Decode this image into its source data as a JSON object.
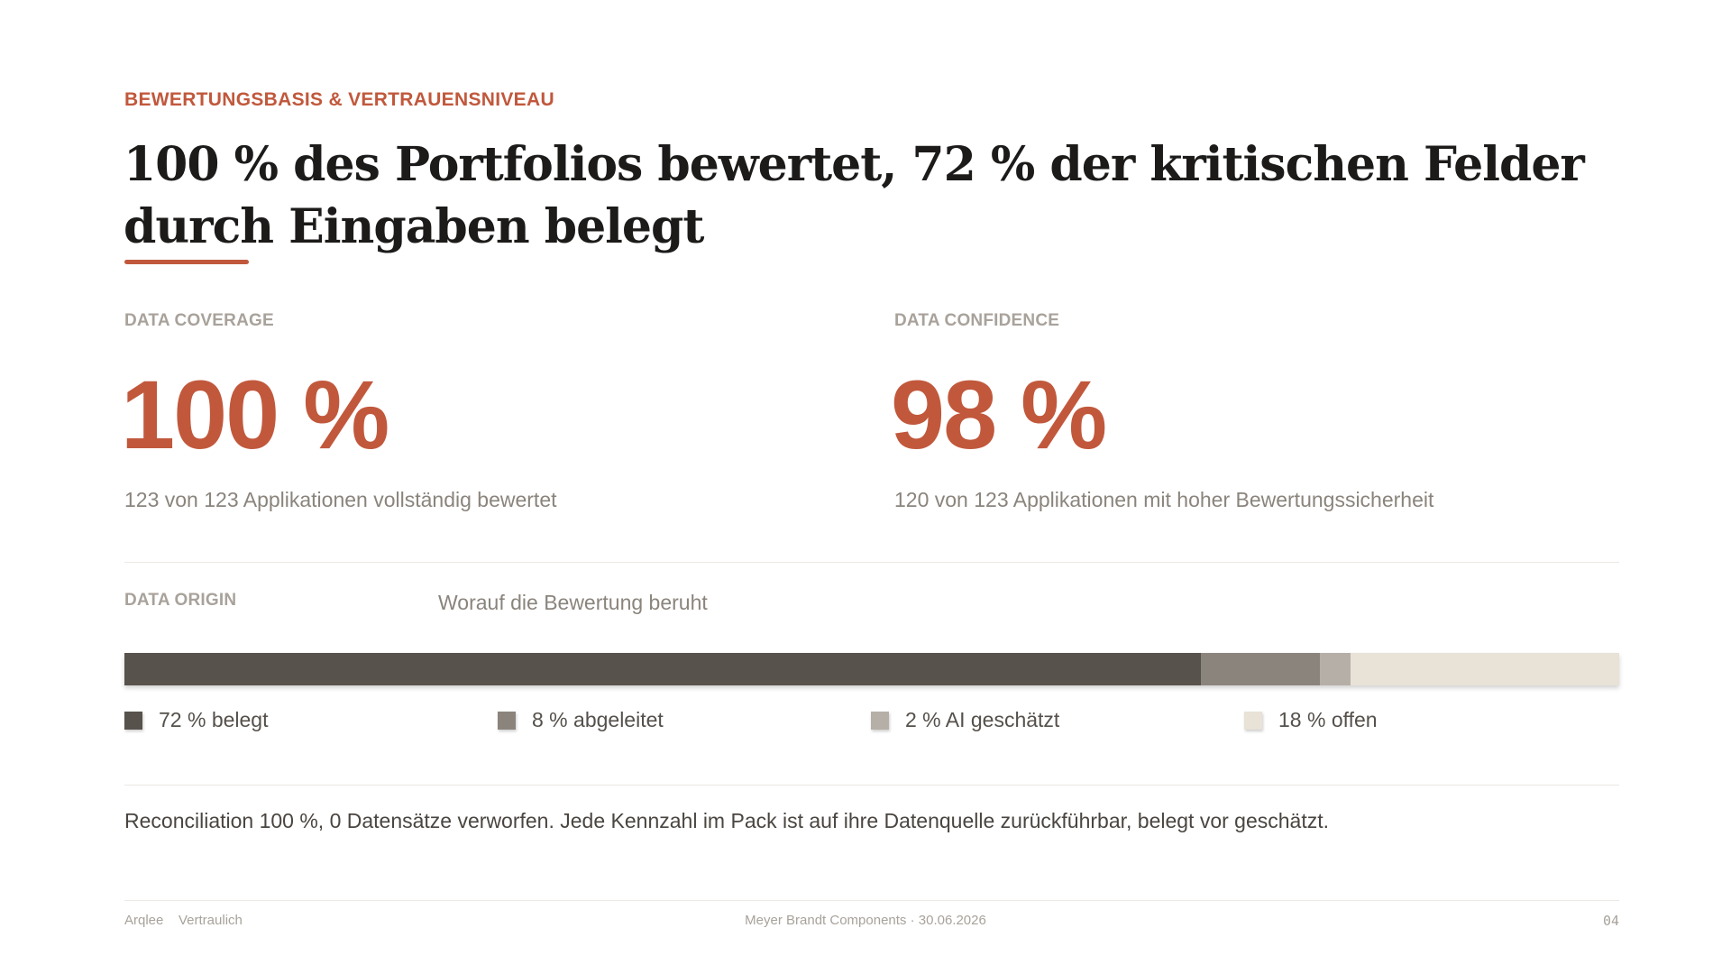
{
  "eyebrow": "BEWERTUNGSBASIS & VERTRAUENSNIVEAU",
  "headline": "100 % des Portfolios bewertet, 72 % der kritischen Felder durch Eingaben belegt",
  "kpis": [
    {
      "label": "DATA COVERAGE",
      "value": "100 %",
      "sub": "123 von 123 Applikationen vollständig bewertet"
    },
    {
      "label": "DATA CONFIDENCE",
      "value": "98 %",
      "sub": "120 von 123 Applikationen mit hoher Bewertungssicherheit"
    }
  ],
  "origin": {
    "label": "DATA ORIGIN",
    "description": "Worauf die Bewertung beruht",
    "segments": [
      {
        "percent": 72,
        "label": "72 % belegt",
        "color": "#58524c"
      },
      {
        "percent": 8,
        "label": "8 % abgeleitet",
        "color": "#8b847d"
      },
      {
        "percent": 2,
        "label": "2 % AI geschätzt",
        "color": "#b6afa7"
      },
      {
        "percent": 18,
        "label": "18 % offen",
        "color": "#e8e2d7"
      }
    ]
  },
  "note": "Reconciliation 100 %, 0 Datensätze verworfen. Jede Kennzahl im Pack ist auf ihre Datenquelle zurückführbar, belegt vor geschätzt.",
  "footer": {
    "brand": "Arqlee",
    "confidentiality": "Vertraulich",
    "center": "Meyer Brandt Components · 30.06.2026",
    "page": "04"
  },
  "colors": {
    "accent": "#c1583c"
  }
}
